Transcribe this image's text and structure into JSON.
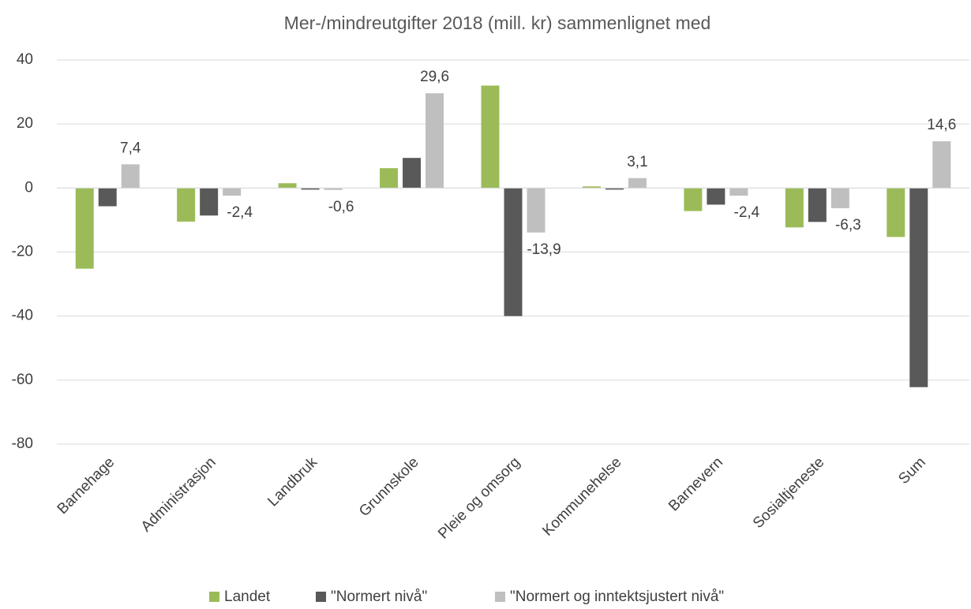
{
  "chart_data": {
    "type": "bar",
    "title": "Mer-/mindreutgifter 2018 (mill. kr) sammenlignet med",
    "categories": [
      "Barnehage",
      "Administrasjon",
      "Landbruk",
      "Grunnskole",
      "Pleie og omsorg",
      "Kommunehelse",
      "Barnevern",
      "Sosialtjeneste",
      "Sum"
    ],
    "series": [
      {
        "name": "Landet",
        "color": "#9bbb59",
        "values": [
          -25.2,
          -10.5,
          1.5,
          6.2,
          32,
          0.5,
          -7.2,
          -12.3,
          -15.3
        ]
      },
      {
        "name": "\"Normert nivå\"",
        "color": "#595959",
        "values": [
          -5.7,
          -8.6,
          -0.5,
          9.4,
          -40,
          -0.5,
          -5.2,
          -10.6,
          -62.2
        ]
      },
      {
        "name": "\"Normert og inntektsjustert nivå\"",
        "color": "#bfbfbf",
        "values": [
          7.4,
          -2.4,
          -0.6,
          29.6,
          -13.9,
          3.1,
          -2.4,
          -6.3,
          14.6
        ],
        "value_labels": [
          "7,4",
          "-2,4",
          "-0,6",
          "29,6",
          "-13,9",
          "3,1",
          "-2,4",
          "-6,3",
          "14,6"
        ]
      }
    ],
    "ylim": [
      -80,
      40
    ],
    "yticks": [
      -80,
      -60,
      -40,
      -20,
      0,
      20,
      40
    ],
    "grid": true,
    "legend": "bottom"
  }
}
